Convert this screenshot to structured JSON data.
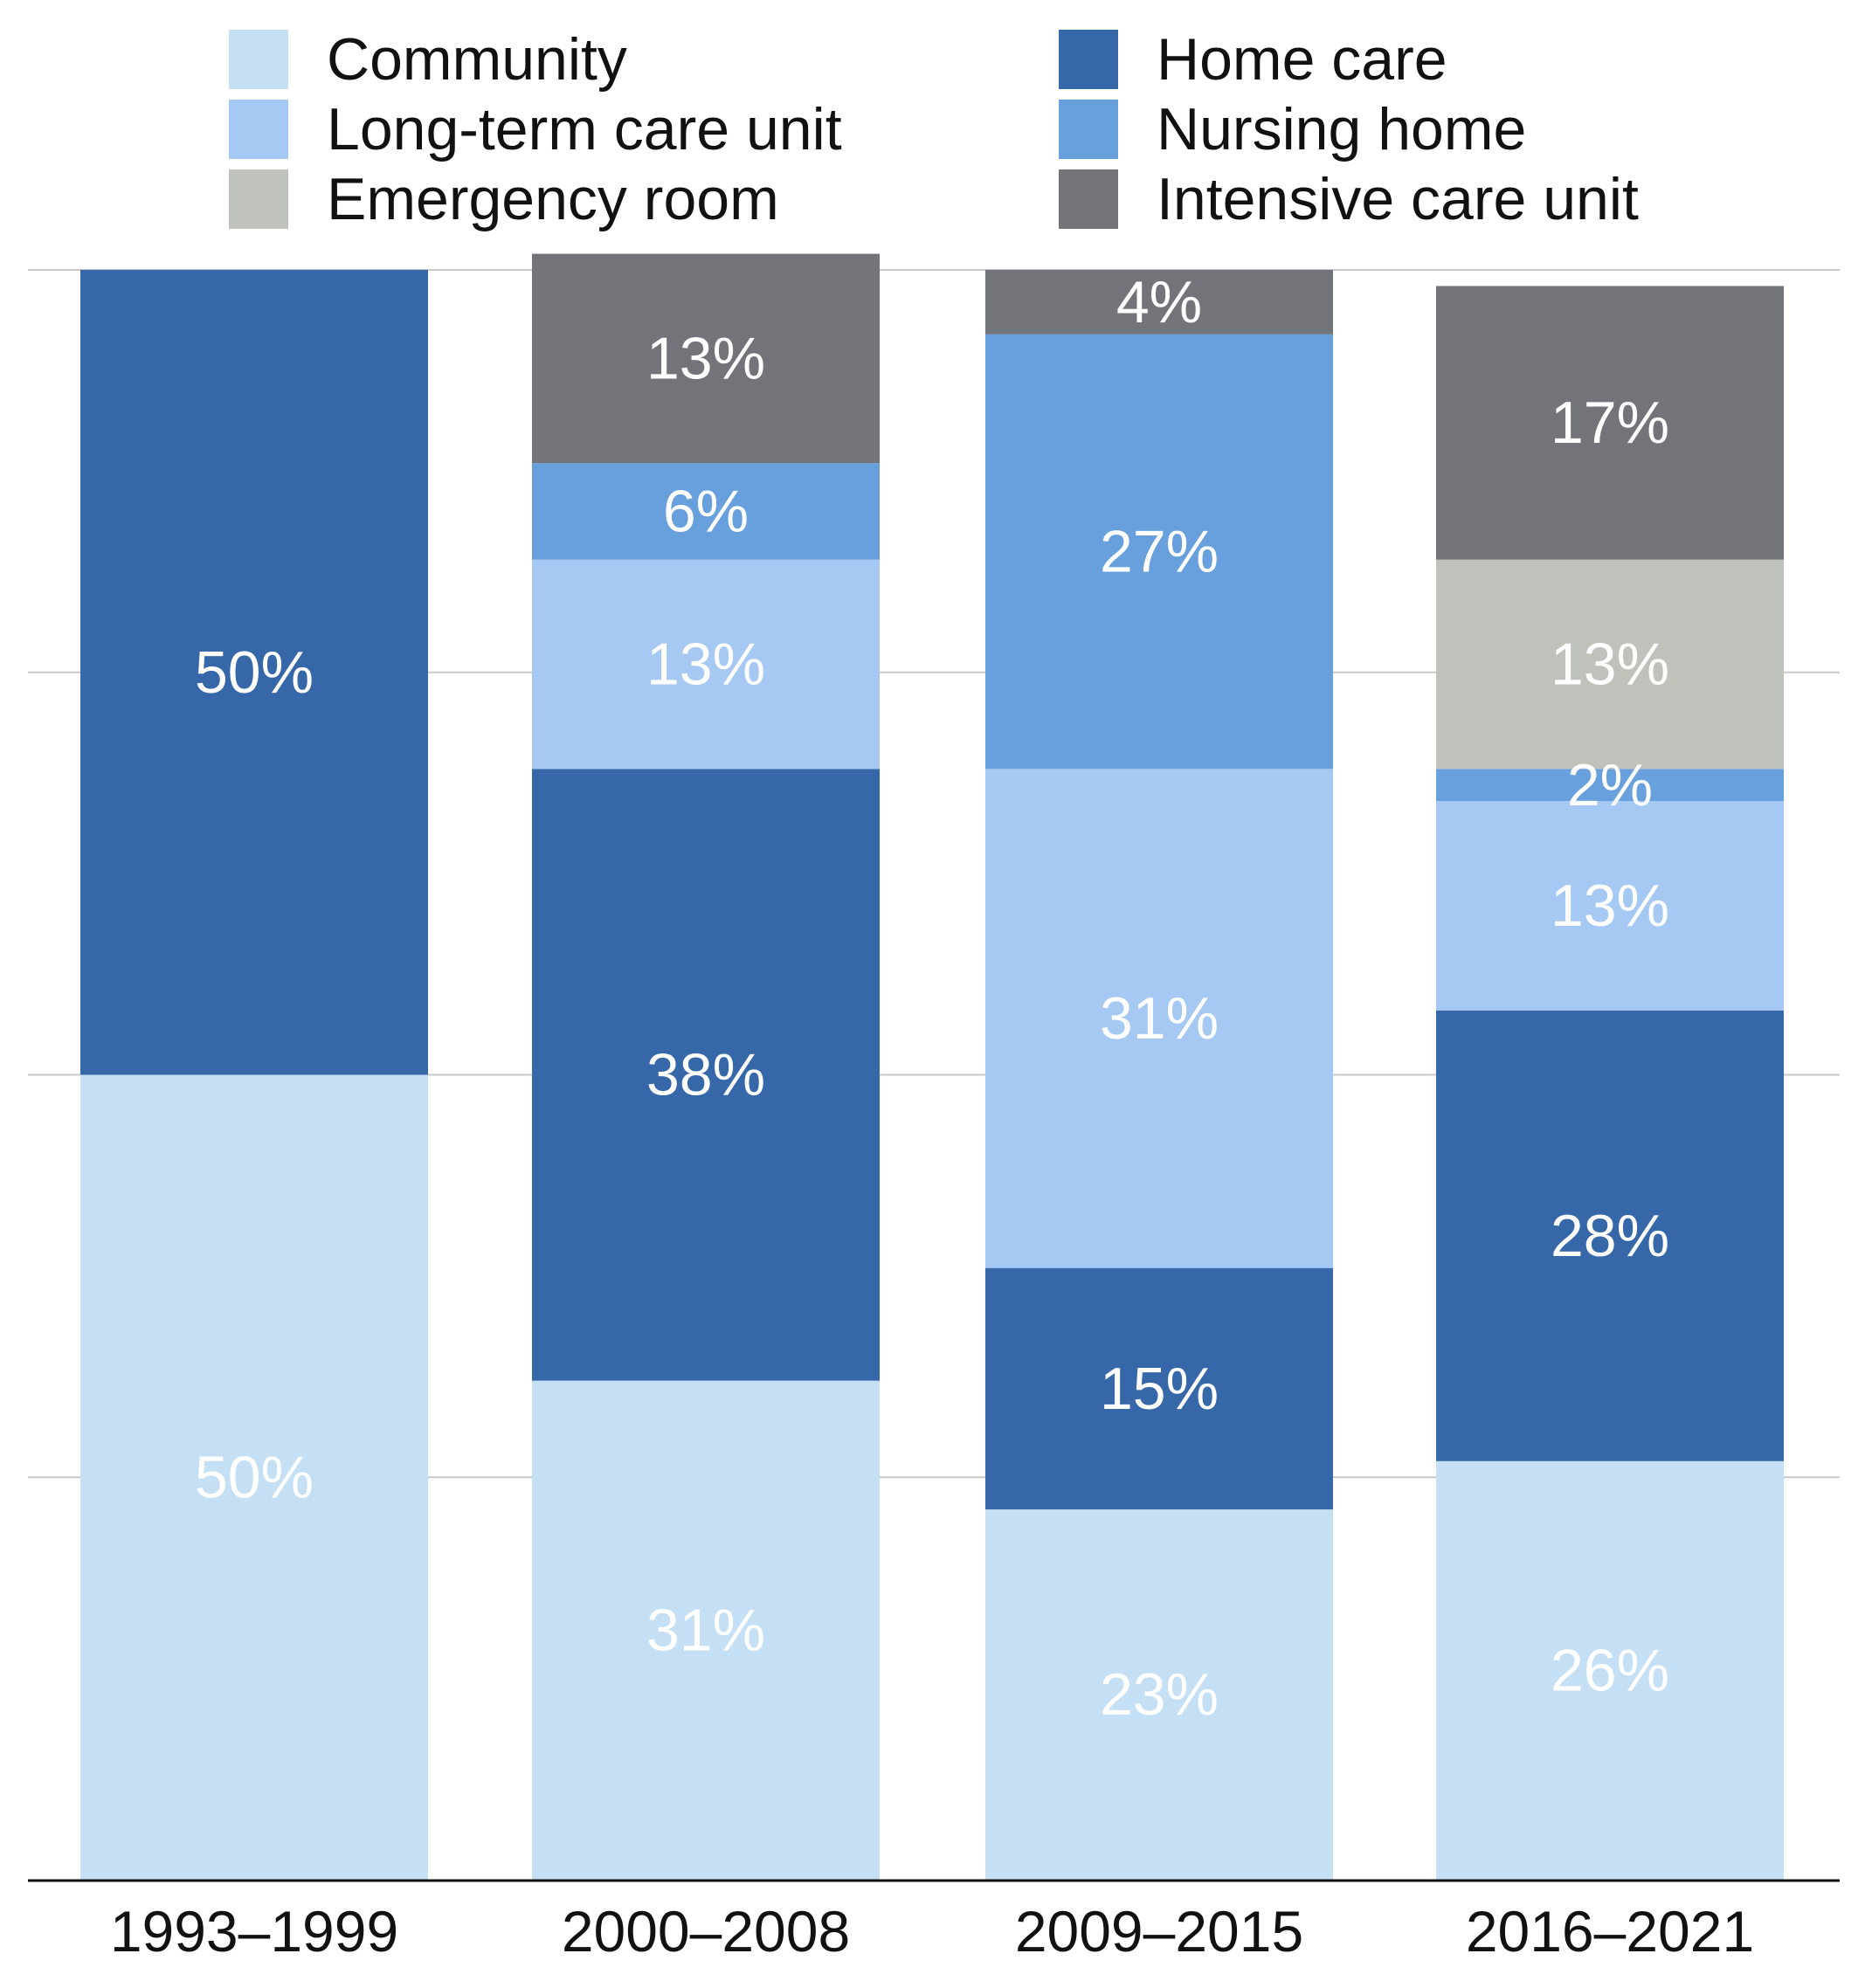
{
  "chart_data": {
    "type": "bar",
    "stacked": true,
    "title": "",
    "xlabel": "",
    "ylabel": "",
    "ylim": [
      0,
      100
    ],
    "grid": true,
    "legend_position": "top",
    "categories": [
      "1993–1999",
      "2000–2008",
      "2009–2015",
      "2016–2021"
    ],
    "series": [
      {
        "name": "Community",
        "color": "#c5dff4",
        "values": [
          50,
          31,
          23,
          26
        ],
        "labels": [
          "50%",
          "31%",
          "23%",
          "26%"
        ]
      },
      {
        "name": "Home care",
        "color": "#3567a9",
        "values": [
          50,
          38,
          15,
          28
        ],
        "labels": [
          "50%",
          "38%",
          "15%",
          "28%"
        ]
      },
      {
        "name": "Long-term care unit",
        "color": "#a6c9f4",
        "values": [
          0,
          13,
          31,
          13
        ],
        "labels": [
          "",
          "13%",
          "31%",
          "13%"
        ]
      },
      {
        "name": "Nursing home",
        "color": "#68a0dd",
        "values": [
          0,
          6,
          27,
          2
        ],
        "labels": [
          "",
          "6%",
          "27%",
          "2%"
        ]
      },
      {
        "name": "Emergency room",
        "color": "#bfc1bb",
        "values": [
          0,
          0,
          0,
          13
        ],
        "labels": [
          "",
          "",
          "",
          "13%"
        ]
      },
      {
        "name": "Intensive care unit",
        "color": "#737479",
        "values": [
          0,
          13,
          4,
          17
        ],
        "labels": [
          "",
          "13%",
          "4%",
          "17%"
        ]
      }
    ],
    "legend_order": [
      "Community",
      "Long-term care unit",
      "Emergency room",
      "Home care",
      "Nursing home",
      "Intensive care unit"
    ]
  }
}
